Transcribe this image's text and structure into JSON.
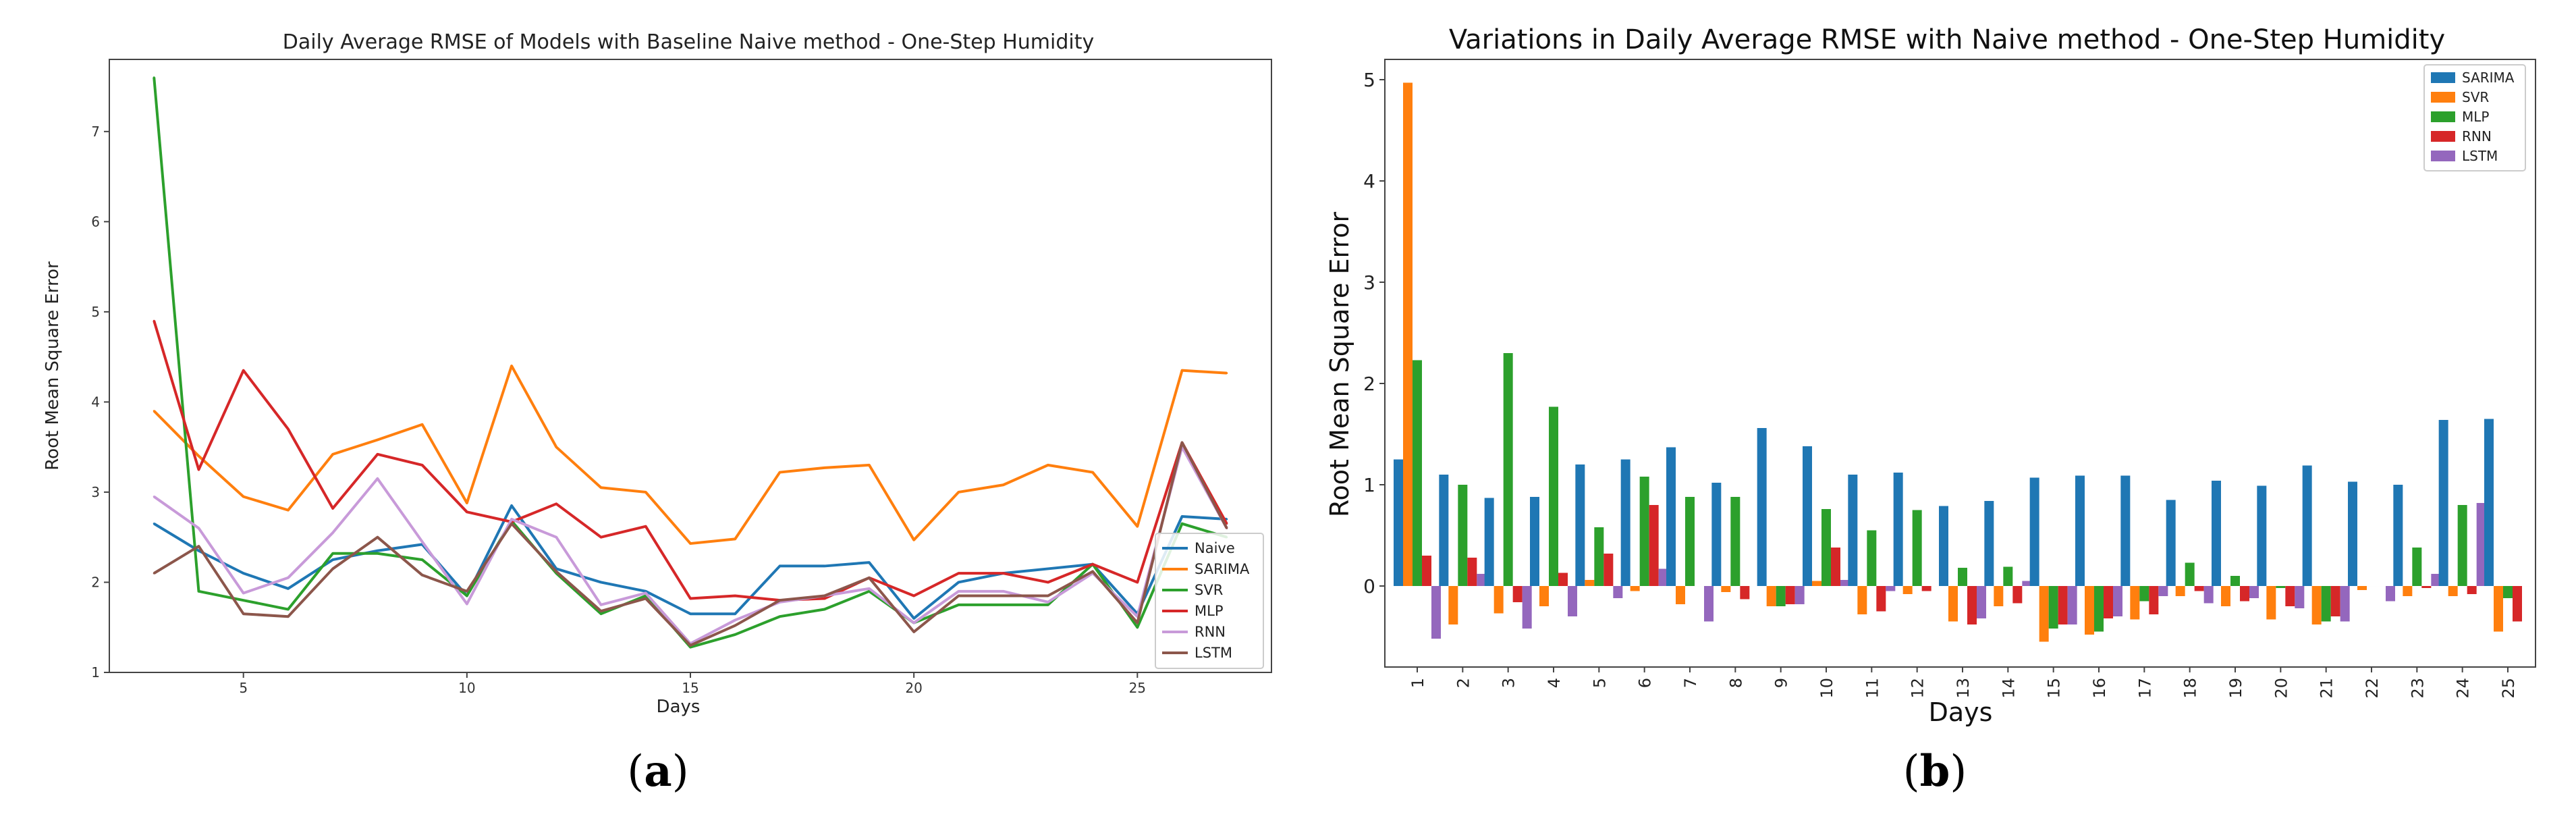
{
  "chart_data": [
    {
      "type": "line",
      "title": "Daily Average RMSE of Models with Baseline Naive method - One-Step Humidity",
      "xlabel": "Days",
      "ylabel": "Root Mean Square Error",
      "xlim": [
        2,
        28
      ],
      "ylim": [
        1,
        7.8
      ],
      "xticks": [
        5,
        10,
        15,
        20,
        25
      ],
      "yticks": [
        1,
        2,
        3,
        4,
        5,
        6,
        7
      ],
      "x": [
        3,
        4,
        5,
        6,
        7,
        8,
        9,
        10,
        11,
        12,
        13,
        14,
        15,
        16,
        17,
        18,
        19,
        20,
        21,
        22,
        23,
        24,
        25,
        26,
        27
      ],
      "legend_position": "lower-right",
      "series": [
        {
          "name": "Naive",
          "color": "#1f77b4",
          "values": [
            2.65,
            2.35,
            2.1,
            1.93,
            2.25,
            2.35,
            2.42,
            1.85,
            2.85,
            2.15,
            2.0,
            1.9,
            1.65,
            1.65,
            2.18,
            2.18,
            2.22,
            1.6,
            2.0,
            2.1,
            2.15,
            2.2,
            1.65,
            2.73,
            2.7
          ]
        },
        {
          "name": "SARIMA",
          "color": "#ff7f0e",
          "values": [
            3.9,
            3.4,
            2.95,
            2.8,
            3.42,
            3.58,
            3.75,
            2.88,
            4.4,
            3.5,
            3.05,
            3.0,
            2.43,
            2.48,
            3.22,
            3.27,
            3.3,
            2.47,
            3.0,
            3.08,
            3.3,
            3.22,
            2.62,
            4.35,
            4.32
          ]
        },
        {
          "name": "SVR",
          "color": "#2ca02c",
          "values": [
            7.6,
            1.9,
            1.8,
            1.7,
            2.32,
            2.32,
            2.25,
            1.85,
            2.68,
            2.1,
            1.65,
            1.85,
            1.28,
            1.42,
            1.62,
            1.7,
            1.9,
            1.55,
            1.75,
            1.75,
            1.75,
            2.2,
            1.5,
            2.65,
            2.5
          ]
        },
        {
          "name": "MLP",
          "color": "#d62728",
          "values": [
            4.9,
            3.25,
            4.35,
            3.7,
            2.82,
            3.42,
            3.3,
            2.78,
            2.67,
            2.87,
            2.5,
            2.62,
            1.82,
            1.85,
            1.8,
            1.82,
            2.05,
            1.85,
            2.1,
            2.1,
            2.0,
            2.2,
            2.0,
            3.55,
            2.65
          ]
        },
        {
          "name": "RNN",
          "color": "#c89ad9",
          "values": [
            2.95,
            2.6,
            1.88,
            2.05,
            2.55,
            3.15,
            2.45,
            1.76,
            2.7,
            2.5,
            1.75,
            1.88,
            1.32,
            1.58,
            1.78,
            1.85,
            1.93,
            1.55,
            1.9,
            1.9,
            1.78,
            2.1,
            1.62,
            3.5,
            2.6
          ]
        },
        {
          "name": "LSTM",
          "color": "#8c564b",
          "values": [
            2.1,
            2.4,
            1.65,
            1.62,
            2.15,
            2.5,
            2.08,
            1.9,
            2.65,
            2.12,
            1.68,
            1.82,
            1.3,
            1.52,
            1.8,
            1.85,
            2.05,
            1.45,
            1.85,
            1.85,
            1.85,
            2.12,
            1.55,
            3.55,
            2.6
          ]
        }
      ]
    },
    {
      "type": "bar",
      "title": "Variations in Daily Average RMSE with Naive method - One-Step Humidity",
      "xlabel": "Days",
      "ylabel": "Root Mean Square Error",
      "ylim": [
        -0.8,
        5.2
      ],
      "yticks": [
        0,
        1,
        2,
        3,
        4,
        5
      ],
      "categories": [
        "1",
        "2",
        "3",
        "4",
        "5",
        "6",
        "7",
        "8",
        "9",
        "10",
        "11",
        "12",
        "13",
        "14",
        "15",
        "16",
        "17",
        "18",
        "19",
        "20",
        "21",
        "22",
        "23",
        "24",
        "25"
      ],
      "legend_position": "top-right",
      "series": [
        {
          "name": "SARIMA",
          "color": "#1f77b4",
          "values": [
            1.25,
            1.1,
            0.87,
            0.88,
            1.2,
            1.25,
            1.37,
            1.02,
            1.56,
            1.38,
            1.1,
            1.12,
            0.79,
            0.84,
            1.07,
            1.09,
            1.09,
            0.85,
            1.04,
            0.99,
            1.19,
            1.03,
            1.0,
            1.64,
            1.65
          ]
        },
        {
          "name": "SVR",
          "color": "#ff7f0e",
          "values": [
            4.97,
            -0.38,
            -0.27,
            -0.2,
            0.06,
            -0.05,
            -0.18,
            -0.06,
            -0.2,
            0.05,
            -0.28,
            -0.08,
            -0.35,
            -0.2,
            -0.55,
            -0.48,
            -0.33,
            -0.1,
            -0.2,
            -0.33,
            -0.38,
            -0.04,
            -0.1,
            -0.1,
            -0.45
          ]
        },
        {
          "name": "MLP",
          "color": "#2ca02c",
          "values": [
            2.23,
            1.0,
            2.3,
            1.77,
            0.58,
            1.08,
            0.88,
            0.88,
            -0.2,
            0.76,
            0.55,
            0.75,
            0.18,
            0.19,
            -0.42,
            -0.45,
            -0.15,
            0.23,
            0.1,
            -0.02,
            -0.35,
            0.0,
            0.38,
            0.8,
            -0.12
          ]
        },
        {
          "name": "RNN",
          "color": "#d62728",
          "values": [
            0.3,
            0.28,
            -0.16,
            0.13,
            0.32,
            0.8,
            0.0,
            -0.13,
            -0.18,
            0.38,
            -0.25,
            -0.05,
            -0.38,
            -0.17,
            -0.38,
            -0.32,
            -0.28,
            -0.05,
            -0.15,
            -0.2,
            -0.3,
            0.0,
            -0.02,
            -0.08,
            -0.35
          ]
        },
        {
          "name": "LSTM",
          "color": "#9467bd",
          "values": [
            -0.52,
            0.12,
            -0.42,
            -0.3,
            -0.12,
            0.17,
            -0.35,
            0.0,
            -0.18,
            0.06,
            -0.05,
            0.0,
            -0.32,
            0.05,
            -0.38,
            -0.3,
            -0.1,
            -0.17,
            -0.12,
            -0.22,
            -0.35,
            -0.15,
            0.12,
            0.82,
            0.0
          ]
        }
      ]
    }
  ],
  "captions": {
    "a": {
      "open": "(",
      "letter": "a",
      "close": ")"
    },
    "b": {
      "open": "(",
      "letter": "b",
      "close": ")"
    }
  }
}
